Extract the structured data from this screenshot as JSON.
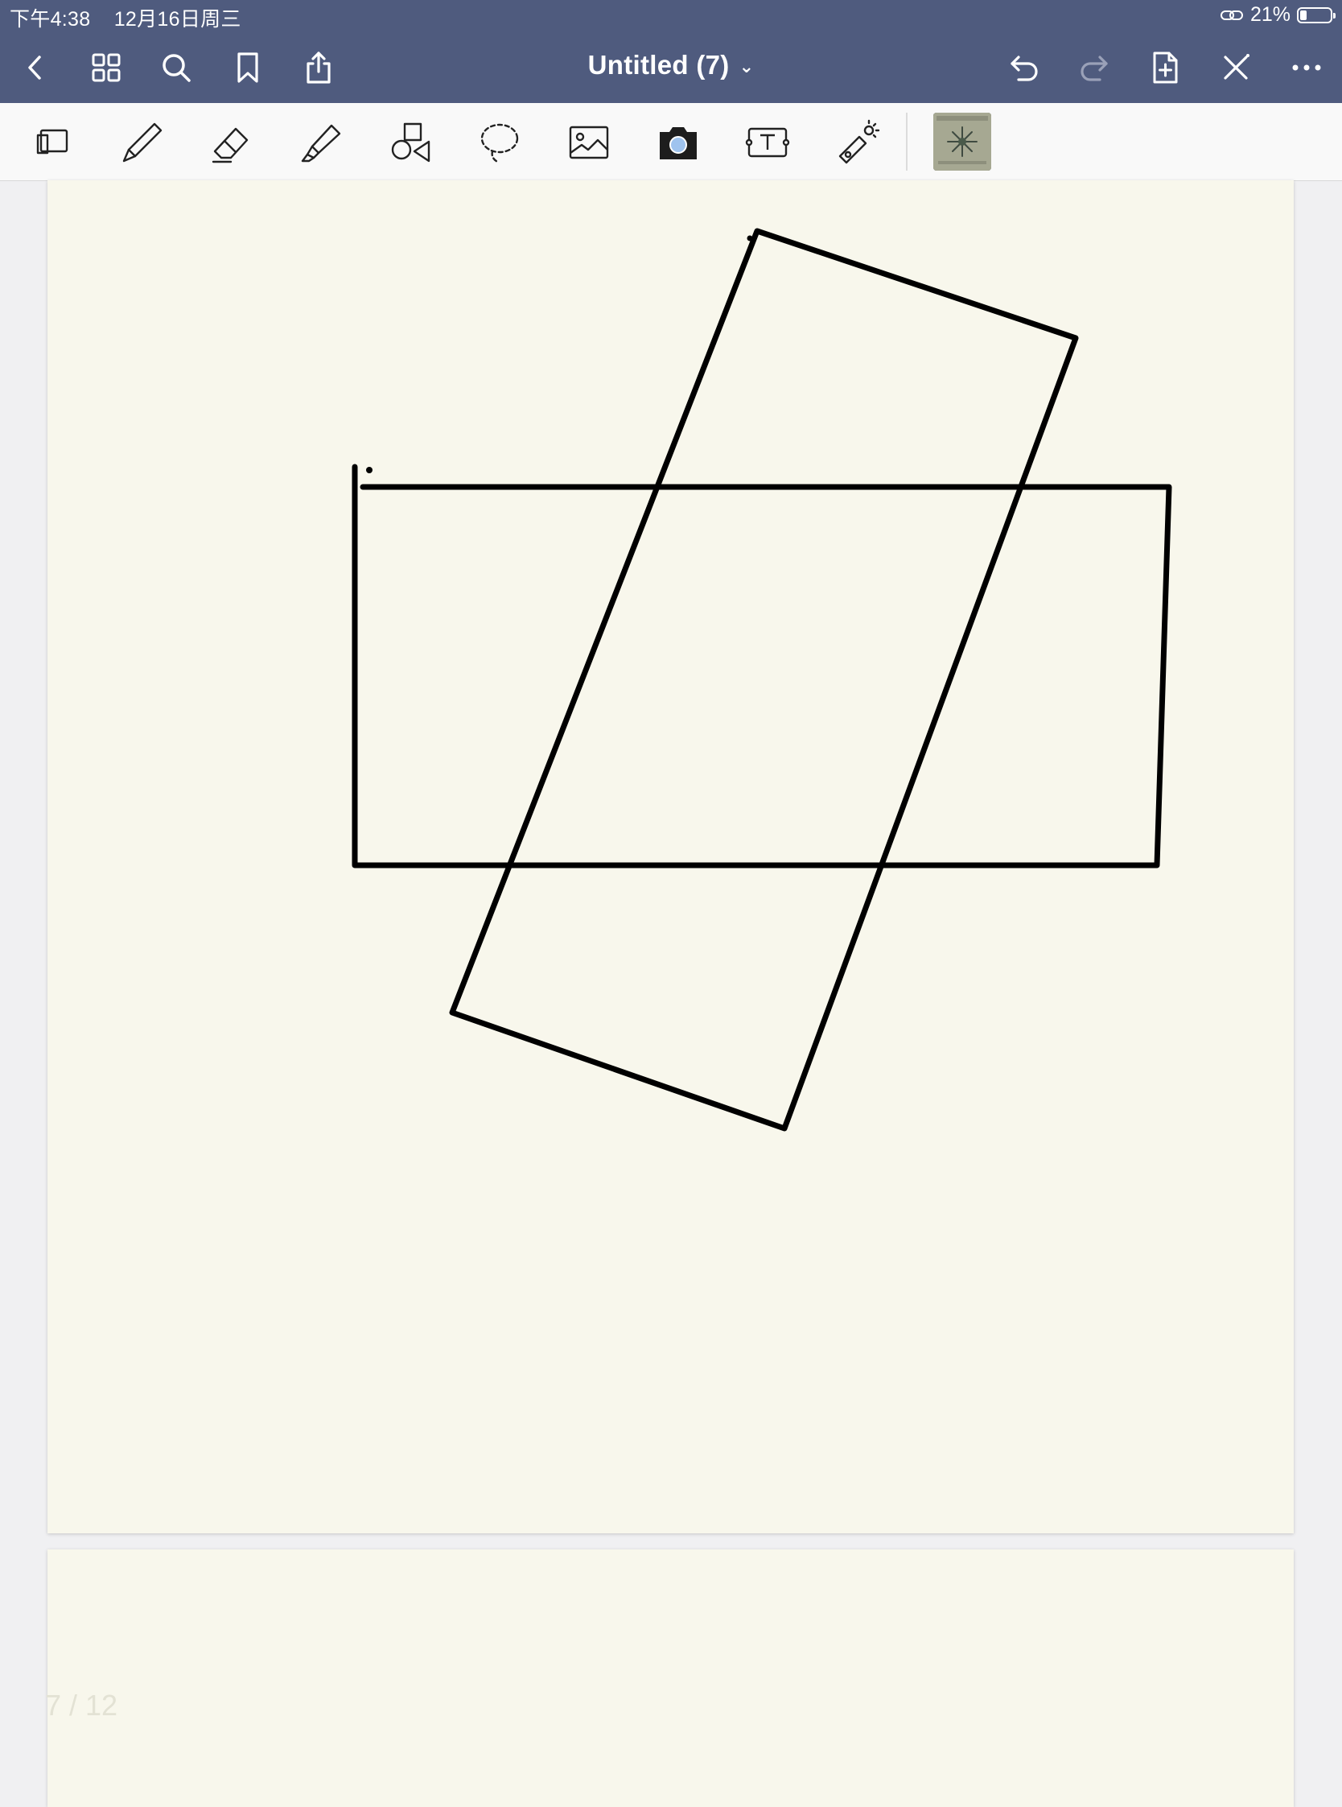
{
  "status_bar": {
    "time": "下午4:38",
    "date": "12月16日周三",
    "battery_percent": "21%",
    "battery_level": 0.21,
    "icons": [
      "link-icon",
      "battery-icon"
    ]
  },
  "nav_bar": {
    "title": "Untitled (7)",
    "left_icons": [
      "back-chevron-icon",
      "grid-icon",
      "search-icon",
      "bookmark-icon",
      "share-icon"
    ],
    "right_icons": [
      "undo-icon",
      "redo-icon",
      "add-page-icon",
      "close-tool-icon",
      "more-icon"
    ]
  },
  "toolbar": {
    "tools": [
      "zoom-window-icon",
      "pen-icon",
      "eraser-icon",
      "highlighter-icon",
      "shapes-icon",
      "lasso-icon",
      "image-icon",
      "camera-icon",
      "text-box-icon",
      "laser-pointer-icon"
    ],
    "thumbnail": "sticker-thumbnail"
  },
  "pages": {
    "current_indicator": "7 / 12"
  },
  "colors": {
    "nav_bg": "#4f5b7e",
    "page_bg": "#f8f7ec",
    "stroke": "#000000"
  }
}
